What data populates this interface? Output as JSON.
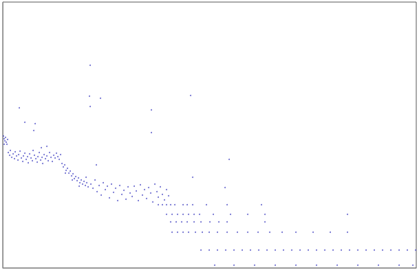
{
  "chart_data": {
    "type": "scatter",
    "color": "#4040c0",
    "marker": "circle",
    "grid": false,
    "tick_labels": false,
    "xlim": [
      4,
      605
    ],
    "ylim": [
      0,
      387
    ],
    "x": [
      5,
      6,
      7,
      8,
      9,
      10,
      6,
      11,
      12,
      14,
      15,
      17,
      19,
      21,
      22,
      24,
      26,
      27,
      29,
      31,
      33,
      34,
      36,
      38,
      40,
      41,
      43,
      45,
      47,
      48,
      50,
      52,
      54,
      55,
      57,
      59,
      61,
      62,
      64,
      66,
      68,
      70,
      72,
      74,
      76,
      78,
      80,
      82,
      84,
      86,
      88,
      60,
      68,
      90,
      92,
      94,
      96,
      98,
      100,
      102,
      104,
      106,
      108,
      110,
      112,
      114,
      116,
      118,
      120,
      122,
      124,
      126,
      128,
      95,
      105,
      115,
      125,
      132,
      135,
      138,
      141,
      144,
      147,
      150,
      153,
      156,
      159,
      162,
      165,
      168,
      171,
      174,
      177,
      180,
      183,
      186,
      189,
      192,
      195,
      198,
      201,
      204,
      207,
      210,
      213,
      216,
      219,
      222,
      225,
      228,
      230,
      233,
      236,
      239,
      242,
      245,
      230,
      236,
      242,
      248,
      254,
      266,
      272,
      280,
      300,
      330,
      380,
      242,
      250,
      258,
      266,
      274,
      282,
      290,
      310,
      335,
      360,
      385,
      505,
      248,
      256,
      264,
      272,
      282,
      292,
      305,
      318,
      330,
      385,
      250,
      258,
      266,
      274,
      284,
      294,
      304,
      316,
      330,
      345,
      360,
      375,
      392,
      410,
      430,
      455,
      480,
      505,
      292,
      304,
      316,
      328,
      340,
      352,
      364,
      376,
      388,
      400,
      412,
      424,
      436,
      448,
      460,
      472,
      484,
      496,
      508,
      520,
      532,
      544,
      556,
      568,
      580,
      592,
      604,
      312,
      340,
      370,
      400,
      430,
      460,
      490,
      520,
      550,
      580,
      600,
      131,
      130,
      146,
      131,
      277,
      28,
      220,
      220,
      36,
      51,
      49,
      140,
      333,
      280,
      327
    ],
    "values": [
      192,
      188,
      185,
      190,
      183,
      180,
      180,
      187,
      168,
      164,
      171,
      161,
      166,
      159,
      169,
      163,
      157,
      165,
      170,
      160,
      155,
      163,
      167,
      158,
      162,
      153,
      166,
      160,
      156,
      171,
      164,
      159,
      154,
      162,
      168,
      157,
      161,
      152,
      165,
      159,
      163,
      156,
      168,
      161,
      155,
      164,
      160,
      167,
      162,
      158,
      165,
      175,
      177,
      152,
      147,
      150,
      142,
      145,
      138,
      141,
      134,
      137,
      130,
      133,
      127,
      131,
      124,
      128,
      122,
      126,
      120,
      124,
      118,
      138,
      128,
      119,
      132,
      122,
      116,
      128,
      111,
      120,
      106,
      124,
      114,
      119,
      102,
      122,
      110,
      116,
      98,
      120,
      107,
      113,
      100,
      118,
      109,
      104,
      119,
      112,
      98,
      121,
      106,
      114,
      101,
      117,
      109,
      96,
      122,
      111,
      103,
      118,
      107,
      99,
      114,
      105,
      92,
      92,
      92,
      92,
      92,
      92,
      92,
      92,
      92,
      92,
      92,
      78,
      78,
      78,
      78,
      78,
      78,
      78,
      78,
      78,
      78,
      78,
      78,
      67,
      67,
      67,
      67,
      67,
      67,
      67,
      67,
      67,
      67,
      52,
      52,
      52,
      52,
      52,
      52,
      52,
      52,
      52,
      52,
      52,
      52,
      52,
      52,
      52,
      52,
      52,
      52,
      26,
      26,
      26,
      26,
      26,
      26,
      26,
      26,
      26,
      26,
      26,
      26,
      26,
      26,
      26,
      26,
      26,
      26,
      26,
      26,
      26,
      26,
      26,
      26,
      26,
      26,
      26,
      4,
      4,
      4,
      4,
      4,
      4,
      4,
      4,
      4,
      4,
      4,
      295,
      250,
      247,
      235,
      251,
      233,
      230,
      197,
      212,
      210,
      200,
      150,
      158,
      132,
      117
    ]
  }
}
